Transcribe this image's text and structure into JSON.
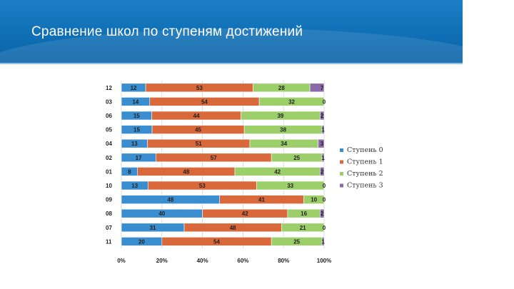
{
  "title": "Сравнение школ по ступеням  достижений",
  "chart_data": {
    "type": "bar",
    "orientation": "horizontal",
    "stacked": "percent",
    "categories": [
      "12",
      "03",
      "06",
      "05",
      "04",
      "02",
      "01",
      "10",
      "09",
      "08",
      "07",
      "11"
    ],
    "series": [
      {
        "name": "Ступень 0",
        "color": "#3a8ed0",
        "values": [
          12,
          14,
          15,
          15,
          13,
          17,
          8,
          13,
          48,
          40,
          31,
          20
        ]
      },
      {
        "name": "Ступень 1",
        "color": "#d9683a",
        "values": [
          53,
          54,
          44,
          45,
          51,
          57,
          48,
          53,
          41,
          42,
          48,
          54
        ]
      },
      {
        "name": "Ступень 2",
        "color": "#9ccf6a",
        "values": [
          28,
          32,
          39,
          38,
          34,
          25,
          42,
          33,
          10,
          16,
          21,
          25
        ]
      },
      {
        "name": "Ступень 3",
        "color": "#8a6aa8",
        "values": [
          7,
          0,
          2,
          1,
          3,
          1,
          2,
          0,
          0,
          2,
          0,
          1
        ]
      }
    ],
    "xticks": [
      "0%",
      "20%",
      "40%",
      "60%",
      "80%",
      "100%"
    ],
    "xlim": [
      0,
      100
    ],
    "legend": "right",
    "grid": true
  }
}
